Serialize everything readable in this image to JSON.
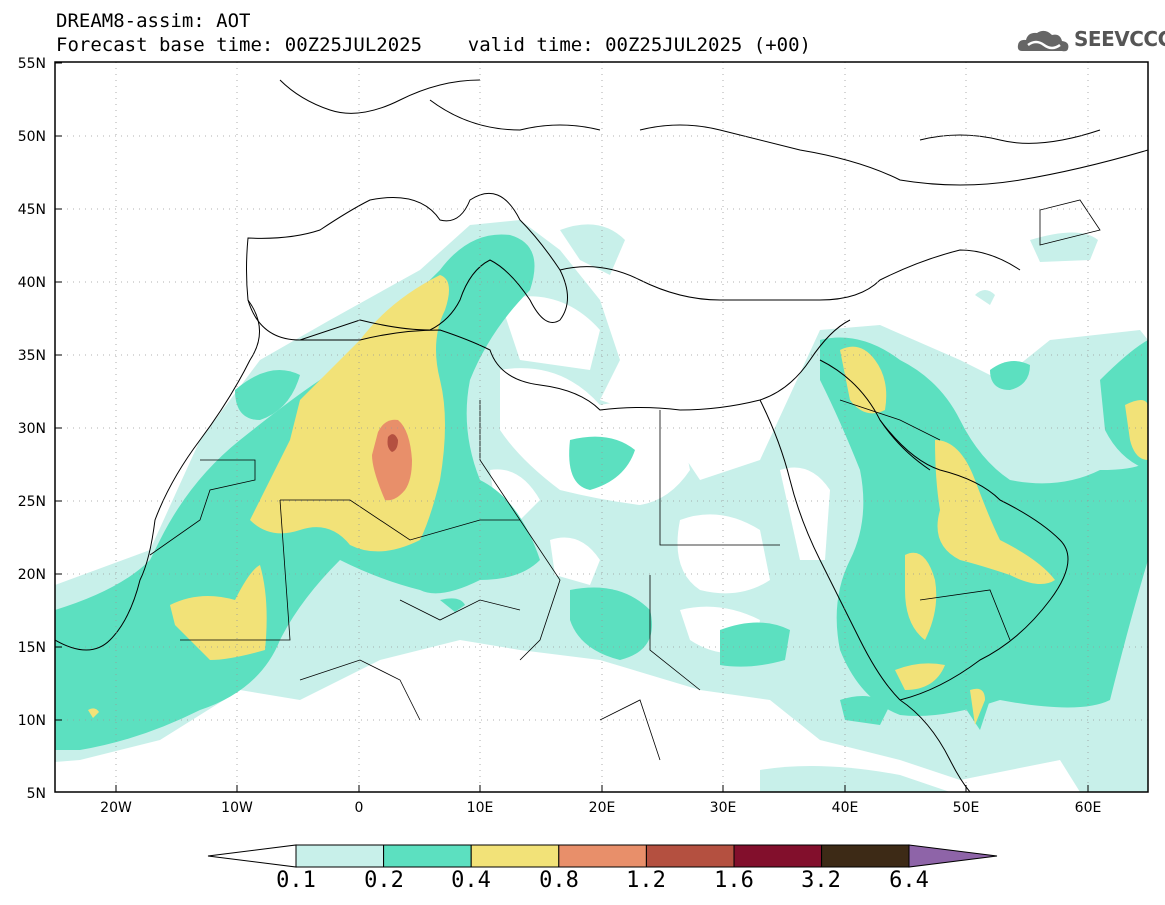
{
  "header": {
    "line1": "DREAM8-assim: AOT",
    "line2": "Forecast base time: 00Z25JUL2025    valid time: 00Z25JUL2025 (+00)"
  },
  "logo": {
    "text": "SEEVCCC",
    "icon": "cloud-logo-icon"
  },
  "axes": {
    "lat_labels": [
      "55N",
      "50N",
      "45N",
      "40N",
      "35N",
      "30N",
      "25N",
      "20N",
      "15N",
      "10N",
      "5N"
    ],
    "lon_labels": [
      "20W",
      "10W",
      "0",
      "10E",
      "20E",
      "30E",
      "40E",
      "50E",
      "60E"
    ]
  },
  "colorbar": {
    "labels": [
      "0.1",
      "0.2",
      "0.4",
      "0.8",
      "1.2",
      "1.6",
      "3.2",
      "6.4"
    ],
    "colors": [
      "#c8f0ea",
      "#5ce0c0",
      "#f2e278",
      "#e88f6a",
      "#b45040",
      "#820f2c",
      "#3d2a16",
      "#8e64a8"
    ]
  },
  "map_colors": {
    "light": "#c8f0ea",
    "green": "#5ce0c0",
    "yellow": "#f2e278",
    "orange": "#e88f6a",
    "brown": "#b45040"
  }
}
